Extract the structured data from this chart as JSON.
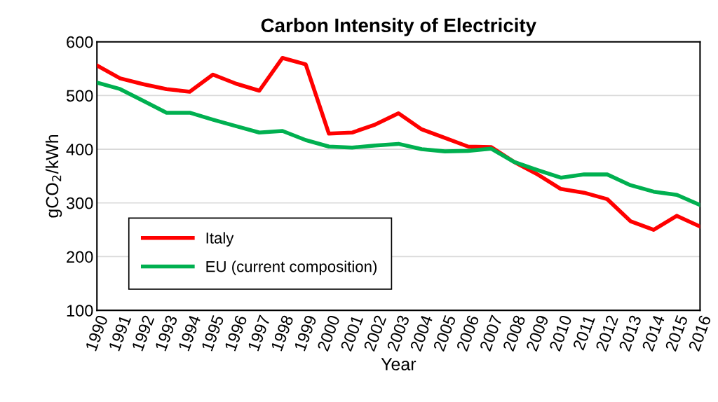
{
  "chart_data": {
    "type": "line",
    "title": "Carbon Intensity of Electricity",
    "xlabel": "Year",
    "ylabel": "gCO$_{2}$/kWh",
    "categories": [
      "1990",
      "1991",
      "1992",
      "1993",
      "1994",
      "1995",
      "1996",
      "1997",
      "1998",
      "1999",
      "2000",
      "2001",
      "2002",
      "2003",
      "2004",
      "2005",
      "2006",
      "2007",
      "2008",
      "2009",
      "2010",
      "2011",
      "2012",
      "2013",
      "2014",
      "2015",
      "2016"
    ],
    "series": [
      {
        "name": "Italy",
        "color": "#ff0000",
        "values": [
          556,
          532,
          521,
          512,
          507,
          539,
          522,
          509,
          570,
          558,
          429,
          431,
          446,
          467,
          437,
          421,
          405,
          404,
          376,
          353,
          326,
          319,
          307,
          266,
          250,
          276,
          256
        ]
      },
      {
        "name": "EU (current composition)",
        "color": "#00b050",
        "values": [
          524,
          512,
          490,
          468,
          468,
          455,
          443,
          431,
          434,
          417,
          405,
          403,
          407,
          410,
          400,
          396,
          397,
          401,
          376,
          361,
          347,
          353,
          353,
          333,
          321,
          315,
          296
        ]
      }
    ],
    "ylim": [
      100,
      600
    ],
    "yticks": [
      100,
      200,
      300,
      400,
      500,
      600
    ],
    "grid": "y",
    "legend": "bottom left",
    "marker": "none",
    "line_style": "solid"
  }
}
